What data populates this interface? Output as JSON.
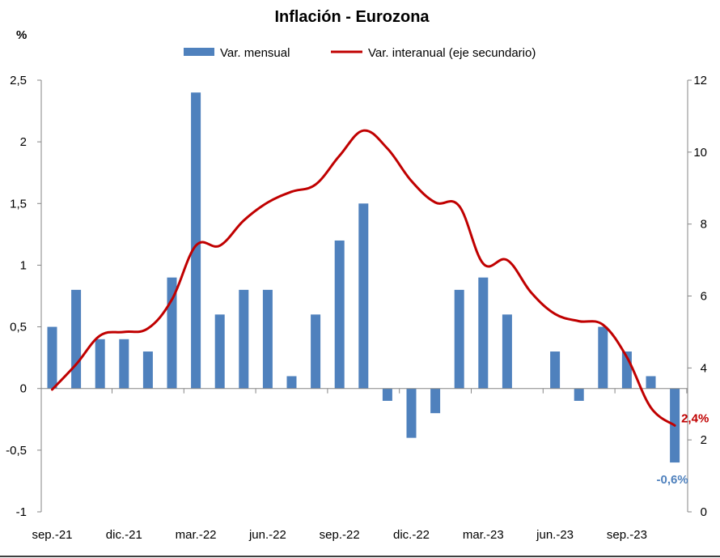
{
  "chart_data": {
    "type": "bar+line",
    "title": "Inflación - Eurozona",
    "y_unit": "%",
    "categories": [
      "sep.-21",
      "oct.-21",
      "nov.-21",
      "dic.-21",
      "ene.-22",
      "feb.-22",
      "mar.-22",
      "abr.-22",
      "may.-22",
      "jun.-22",
      "jul.-22",
      "ago.-22",
      "sep.-22",
      "oct.-22",
      "nov.-22",
      "dic.-22",
      "ene.-23",
      "feb.-23",
      "mar.-23",
      "abr.-23",
      "may.-23",
      "jun.-23",
      "jul.-23",
      "ago.-23",
      "sep.-23",
      "oct.-23",
      "nov.-23"
    ],
    "x_tick_labels": [
      "sep.-21",
      "dic.-21",
      "mar.-22",
      "jun.-22",
      "sep.-22",
      "dic.-22",
      "mar.-23",
      "jun.-23",
      "sep.-23"
    ],
    "ylim": [
      -1,
      2.5
    ],
    "y_ticks": [
      "-1",
      "-0,5",
      "0",
      "0,5",
      "1",
      "1,5",
      "2",
      "2,5"
    ],
    "y2lim": [
      0,
      12
    ],
    "y2_ticks": [
      "0",
      "2",
      "4",
      "6",
      "8",
      "10",
      "12"
    ],
    "series": [
      {
        "name": "Var. mensual",
        "kind": "bar",
        "axis": "primary",
        "color": "#4f81bd",
        "values": [
          0.5,
          0.8,
          0.4,
          0.4,
          0.3,
          0.9,
          2.4,
          0.6,
          0.8,
          0.8,
          0.1,
          0.6,
          1.2,
          1.5,
          -0.1,
          -0.4,
          -0.2,
          0.8,
          0.9,
          0.6,
          0.0,
          0.3,
          -0.1,
          0.5,
          0.3,
          0.1,
          -0.6
        ]
      },
      {
        "name": "Var. interanual (eje secundario)",
        "kind": "line",
        "axis": "secondary",
        "color": "#c00000",
        "values": [
          3.4,
          4.1,
          4.9,
          5.0,
          5.1,
          5.9,
          7.4,
          7.4,
          8.1,
          8.6,
          8.9,
          9.1,
          9.9,
          10.6,
          10.1,
          9.2,
          8.6,
          8.5,
          6.9,
          7.0,
          6.1,
          5.5,
          5.3,
          5.2,
          4.3,
          2.9,
          2.4
        ]
      }
    ],
    "annotations": {
      "line_last": "2,4%",
      "bar_last": "-0,6%"
    },
    "grid": false,
    "legend": "top"
  }
}
